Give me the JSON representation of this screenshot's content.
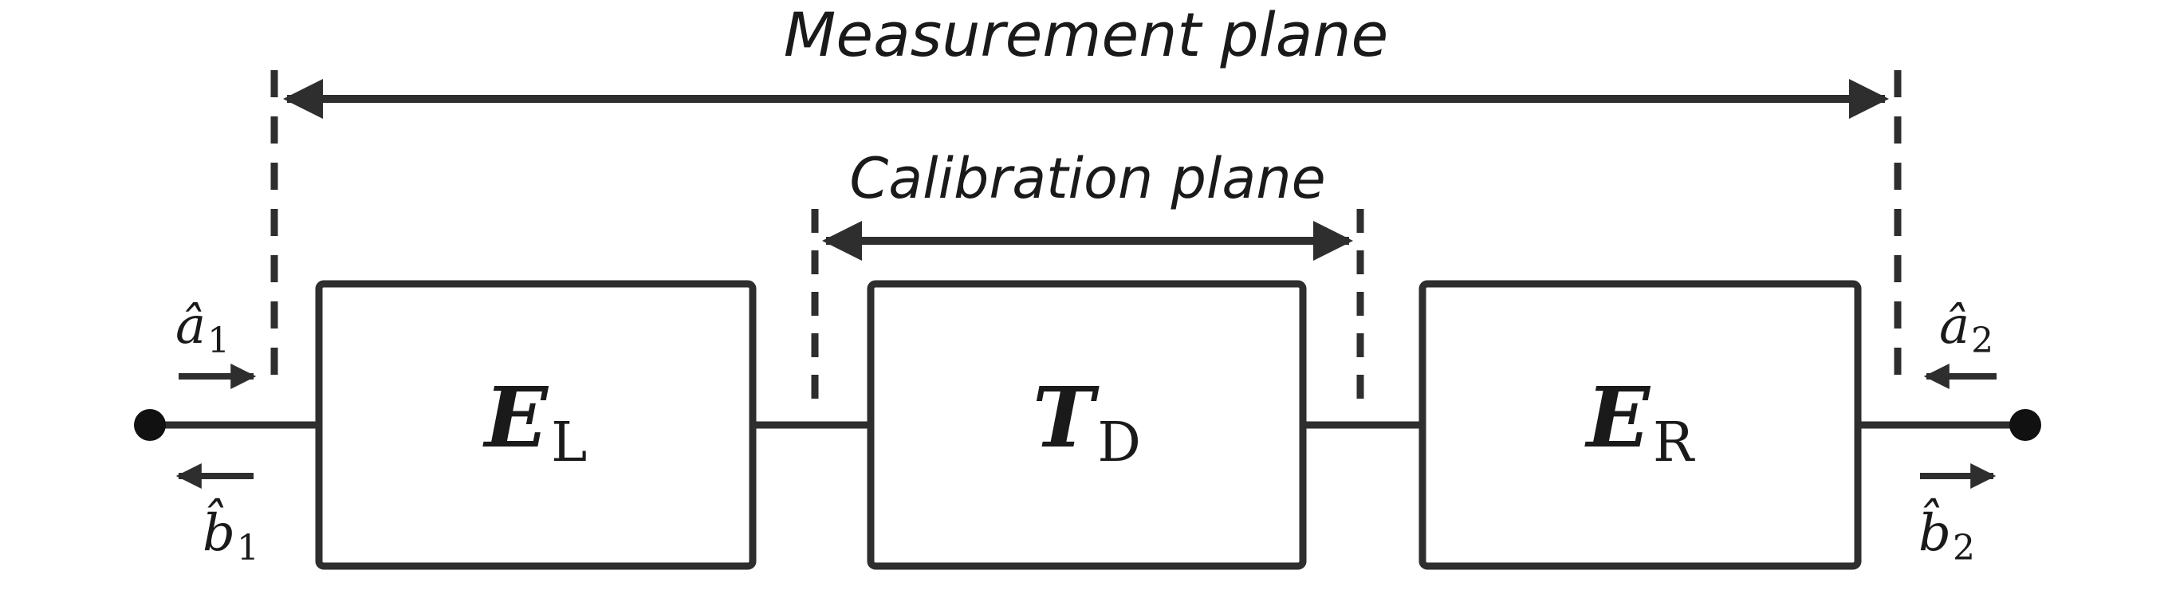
{
  "labels": {
    "measurement_plane": "Measurement plane",
    "calibration_plane": "Calibration plane"
  },
  "blocks": [
    {
      "symbol": "E",
      "subscript": "L"
    },
    {
      "symbol": "T",
      "subscript": "D"
    },
    {
      "symbol": "E",
      "subscript": "R"
    }
  ],
  "waves": {
    "a1": {
      "symbol": "â",
      "subscript": "1"
    },
    "b1": {
      "symbol": "b̂",
      "subscript": "1"
    },
    "a2": {
      "symbol": "â",
      "subscript": "2"
    },
    "b2": {
      "symbol": "b̂",
      "subscript": "2"
    }
  },
  "colors": {
    "stroke": "#2e2e2e",
    "text": "#1a1a1a",
    "background": "#ffffff"
  }
}
